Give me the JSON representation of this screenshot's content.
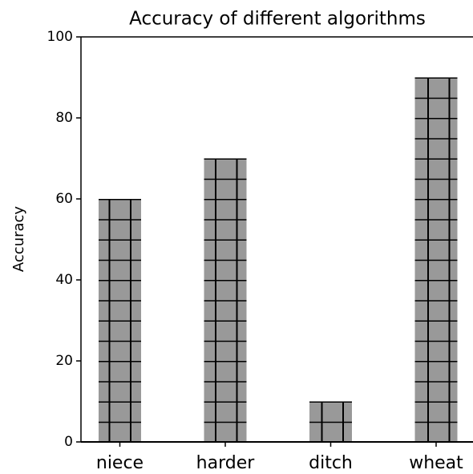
{
  "chart_data": {
    "type": "bar",
    "title": "Accuracy of different algorithms",
    "y_label": "Accuracy",
    "categories": [
      "niece",
      "harder",
      "ditch",
      "wheat"
    ],
    "values": [
      60,
      70,
      10,
      90
    ],
    "color": "#999999",
    "hatch": "+",
    "hatch_color": "#000000",
    "ylim": [
      0,
      100
    ],
    "yticks": [
      0,
      20,
      40,
      60,
      80,
      100
    ],
    "grid": false
  }
}
